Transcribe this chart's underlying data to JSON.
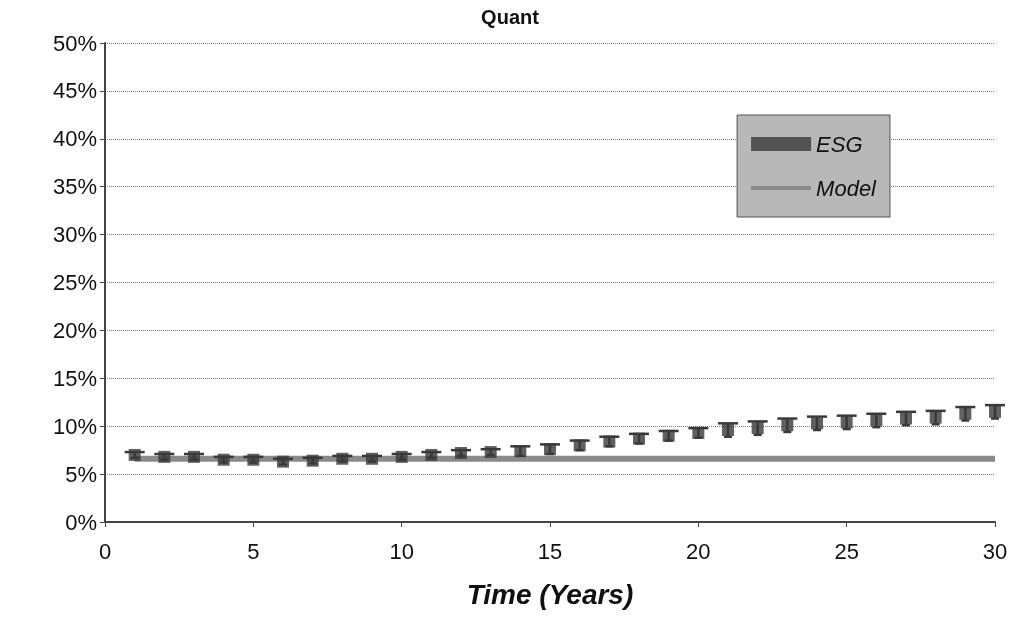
{
  "chart_data": {
    "type": "scatter",
    "title": "Quant",
    "xlabel": "Time (Years)",
    "x": [
      1,
      2,
      3,
      4,
      5,
      6,
      7,
      8,
      9,
      10,
      11,
      12,
      13,
      14,
      15,
      16,
      17,
      18,
      19,
      20,
      21,
      22,
      23,
      24,
      25,
      26,
      27,
      28,
      29,
      30
    ],
    "series": [
      {
        "name": "ESG",
        "color": "#3a3a3a",
        "marker": "square",
        "values": [
          7.0,
          6.8,
          6.8,
          6.5,
          6.5,
          6.3,
          6.4,
          6.6,
          6.6,
          6.8,
          7.0,
          7.2,
          7.3,
          7.4,
          7.6,
          8.0,
          8.4,
          8.7,
          9.0,
          9.3,
          9.6,
          9.8,
          10.1,
          10.3,
          10.4,
          10.6,
          10.8,
          10.9,
          11.3,
          11.5
        ],
        "errors": [
          0.3,
          0.3,
          0.3,
          0.3,
          0.3,
          0.3,
          0.3,
          0.3,
          0.3,
          0.3,
          0.3,
          0.3,
          0.3,
          0.5,
          0.5,
          0.5,
          0.5,
          0.5,
          0.5,
          0.5,
          0.7,
          0.7,
          0.7,
          0.7,
          0.7,
          0.7,
          0.7,
          0.7,
          0.7,
          0.7
        ]
      },
      {
        "name": "Model",
        "type": "line",
        "color": "#8a8a8a",
        "marker": "none",
        "line_style": "solid",
        "x": [
          1,
          30
        ],
        "values": [
          6.6,
          6.6
        ]
      }
    ],
    "xlim": [
      0,
      30
    ],
    "xticks": [
      0,
      5,
      10,
      15,
      20,
      25,
      30
    ],
    "ylim": [
      0,
      50
    ],
    "yticks": [
      {
        "value": 0,
        "label": "0%"
      },
      {
        "value": 5,
        "label": "5%"
      },
      {
        "value": 10,
        "label": "10%"
      },
      {
        "value": 15,
        "label": "15%"
      },
      {
        "value": 20,
        "label": "20%"
      },
      {
        "value": 25,
        "label": "25%"
      },
      {
        "value": 30,
        "label": "30%"
      },
      {
        "value": 35,
        "label": "35%"
      },
      {
        "value": 40,
        "label": "40%"
      },
      {
        "value": 45,
        "label": "45%"
      },
      {
        "value": 50,
        "label": "50%"
      }
    ],
    "grid": "y",
    "legend": "top right"
  }
}
